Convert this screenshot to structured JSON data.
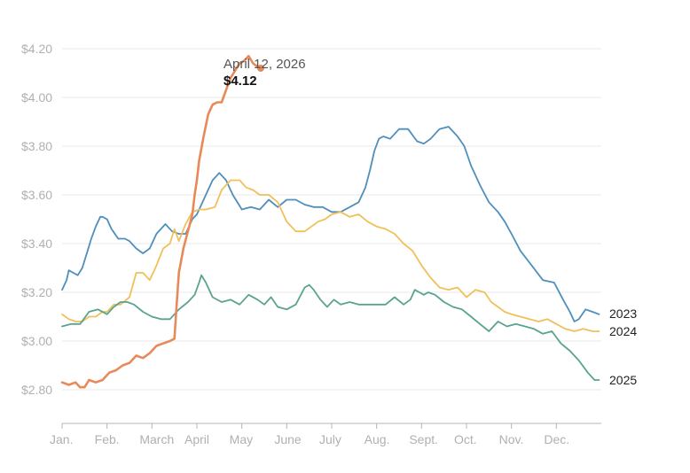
{
  "chart_data": {
    "type": "line",
    "xlabel": "",
    "ylabel": "",
    "ylim": [
      2.7,
      4.25
    ],
    "y_ticks": [
      2.8,
      3.0,
      3.2,
      3.4,
      3.6,
      3.8,
      4.0,
      4.2
    ],
    "y_tick_labels": [
      "$2.80",
      "$3.00",
      "$3.20",
      "$3.40",
      "$3.60",
      "$3.80",
      "$4.00",
      "$4.20"
    ],
    "x_tick_labels": [
      "Jan.",
      "Feb.",
      "March",
      "April",
      "May",
      "June",
      "July",
      "Aug.",
      "Sept.",
      "Oct.",
      "Nov.",
      "Dec."
    ],
    "x_unit": "month (0 = Jan. 1, 12 = Dec. 31)",
    "grid": "horizontal",
    "series": [
      {
        "name": "2023",
        "color": "#4e8fbb",
        "x": [
          0,
          0.1,
          0.15,
          0.25,
          0.35,
          0.45,
          0.55,
          0.65,
          0.75,
          0.85,
          0.9,
          1.0,
          1.1,
          1.25,
          1.4,
          1.5,
          1.65,
          1.8,
          1.95,
          2.1,
          2.3,
          2.45,
          2.6,
          2.75,
          2.9,
          3.0,
          3.1,
          3.2,
          3.35,
          3.5,
          3.65,
          3.8,
          4.0,
          4.2,
          4.4,
          4.6,
          4.8,
          5.0,
          5.2,
          5.4,
          5.6,
          5.8,
          6.0,
          6.2,
          6.4,
          6.6,
          6.75,
          6.85,
          6.95,
          7.05,
          7.15,
          7.3,
          7.5,
          7.7,
          7.9,
          8.05,
          8.2,
          8.4,
          8.6,
          8.8,
          8.95,
          9.1,
          9.3,
          9.5,
          9.7,
          9.85,
          10.0,
          10.2,
          10.45,
          10.7,
          10.95,
          11.15,
          11.3,
          11.4,
          11.5,
          11.65,
          11.8,
          11.95
        ],
        "y": [
          3.21,
          3.25,
          3.29,
          3.28,
          3.27,
          3.3,
          3.36,
          3.42,
          3.47,
          3.51,
          3.51,
          3.5,
          3.46,
          3.42,
          3.42,
          3.41,
          3.38,
          3.36,
          3.38,
          3.44,
          3.48,
          3.45,
          3.44,
          3.44,
          3.5,
          3.52,
          3.56,
          3.6,
          3.66,
          3.69,
          3.66,
          3.6,
          3.54,
          3.55,
          3.54,
          3.58,
          3.55,
          3.58,
          3.58,
          3.56,
          3.55,
          3.55,
          3.53,
          3.53,
          3.55,
          3.57,
          3.63,
          3.7,
          3.78,
          3.83,
          3.84,
          3.83,
          3.87,
          3.87,
          3.82,
          3.81,
          3.83,
          3.87,
          3.88,
          3.84,
          3.8,
          3.72,
          3.64,
          3.57,
          3.53,
          3.49,
          3.44,
          3.37,
          3.31,
          3.25,
          3.24,
          3.17,
          3.12,
          3.08,
          3.09,
          3.13,
          3.12,
          3.11
        ]
      },
      {
        "name": "2024",
        "color": "#f0c05a",
        "x": [
          0,
          0.15,
          0.3,
          0.45,
          0.6,
          0.75,
          0.9,
          1.0,
          1.15,
          1.3,
          1.5,
          1.65,
          1.8,
          1.95,
          2.1,
          2.25,
          2.4,
          2.5,
          2.6,
          2.75,
          2.9,
          3.05,
          3.2,
          3.4,
          3.55,
          3.75,
          3.95,
          4.1,
          4.25,
          4.4,
          4.6,
          4.8,
          5.0,
          5.2,
          5.4,
          5.55,
          5.7,
          5.85,
          6.0,
          6.2,
          6.4,
          6.6,
          6.8,
          7.0,
          7.2,
          7.4,
          7.6,
          7.8,
          8.0,
          8.2,
          8.4,
          8.6,
          8.8,
          9.0,
          9.2,
          9.4,
          9.55,
          9.7,
          9.85,
          10.0,
          10.2,
          10.4,
          10.6,
          10.8,
          11.0,
          11.2,
          11.4,
          11.6,
          11.8,
          11.95
        ],
        "y": [
          3.11,
          3.09,
          3.08,
          3.08,
          3.1,
          3.1,
          3.12,
          3.12,
          3.15,
          3.15,
          3.18,
          3.28,
          3.28,
          3.25,
          3.31,
          3.38,
          3.4,
          3.46,
          3.41,
          3.48,
          3.53,
          3.54,
          3.54,
          3.55,
          3.62,
          3.66,
          3.66,
          3.63,
          3.62,
          3.6,
          3.6,
          3.57,
          3.49,
          3.45,
          3.45,
          3.47,
          3.49,
          3.5,
          3.52,
          3.53,
          3.51,
          3.52,
          3.49,
          3.47,
          3.46,
          3.44,
          3.4,
          3.37,
          3.31,
          3.26,
          3.22,
          3.21,
          3.22,
          3.18,
          3.21,
          3.2,
          3.16,
          3.14,
          3.12,
          3.11,
          3.1,
          3.09,
          3.08,
          3.09,
          3.07,
          3.05,
          3.04,
          3.05,
          3.04,
          3.04
        ]
      },
      {
        "name": "2025",
        "color": "#5aa38f",
        "x": [
          0,
          0.2,
          0.4,
          0.6,
          0.8,
          1.0,
          1.15,
          1.3,
          1.45,
          1.6,
          1.8,
          2.0,
          2.2,
          2.4,
          2.6,
          2.8,
          2.95,
          3.05,
          3.1,
          3.2,
          3.35,
          3.55,
          3.75,
          3.95,
          4.15,
          4.35,
          4.5,
          4.65,
          4.8,
          5.0,
          5.2,
          5.4,
          5.5,
          5.6,
          5.75,
          5.9,
          6.05,
          6.2,
          6.4,
          6.6,
          6.8,
          7.0,
          7.2,
          7.4,
          7.6,
          7.75,
          7.85,
          7.95,
          8.05,
          8.15,
          8.3,
          8.5,
          8.7,
          8.9,
          9.1,
          9.3,
          9.5,
          9.7,
          9.9,
          10.1,
          10.3,
          10.5,
          10.7,
          10.9,
          11.1,
          11.3,
          11.5,
          11.7,
          11.85,
          11.95
        ],
        "y": [
          3.06,
          3.07,
          3.07,
          3.12,
          3.13,
          3.11,
          3.14,
          3.16,
          3.16,
          3.15,
          3.12,
          3.1,
          3.09,
          3.09,
          3.13,
          3.16,
          3.19,
          3.24,
          3.27,
          3.24,
          3.18,
          3.16,
          3.17,
          3.15,
          3.19,
          3.17,
          3.15,
          3.18,
          3.14,
          3.13,
          3.15,
          3.22,
          3.23,
          3.21,
          3.17,
          3.14,
          3.17,
          3.15,
          3.16,
          3.15,
          3.15,
          3.15,
          3.15,
          3.18,
          3.15,
          3.17,
          3.21,
          3.2,
          3.19,
          3.2,
          3.19,
          3.16,
          3.14,
          3.13,
          3.1,
          3.07,
          3.04,
          3.08,
          3.06,
          3.07,
          3.06,
          3.05,
          3.03,
          3.04,
          2.99,
          2.96,
          2.92,
          2.87,
          2.84,
          2.84
        ]
      },
      {
        "name": "2026",
        "color": "#e8895a",
        "highlight": true,
        "x": [
          0,
          0.15,
          0.3,
          0.4,
          0.5,
          0.6,
          0.75,
          0.9,
          1.05,
          1.2,
          1.35,
          1.5,
          1.65,
          1.8,
          1.95,
          2.1,
          2.25,
          2.4,
          2.5,
          2.55,
          2.6,
          2.7,
          2.8,
          2.9,
          2.95,
          3.0,
          3.05,
          3.15,
          3.25,
          3.35,
          3.45,
          3.55,
          3.65,
          3.75,
          3.85,
          3.95,
          4.05,
          4.15,
          4.25,
          4.32,
          4.38
        ],
        "y": [
          2.83,
          2.82,
          2.83,
          2.81,
          2.81,
          2.84,
          2.83,
          2.84,
          2.87,
          2.88,
          2.9,
          2.91,
          2.94,
          2.93,
          2.95,
          2.98,
          2.99,
          3.0,
          3.01,
          3.15,
          3.28,
          3.38,
          3.45,
          3.52,
          3.6,
          3.66,
          3.74,
          3.84,
          3.93,
          3.97,
          3.98,
          3.98,
          4.03,
          4.08,
          4.11,
          4.14,
          4.15,
          4.17,
          4.14,
          4.13,
          4.12
        ]
      }
    ],
    "annotation": {
      "date": "April 12, 2026",
      "value": "$4.12"
    }
  },
  "series_labels": {
    "y2023": "2023",
    "y2024": "2024",
    "y2025": "2025"
  }
}
